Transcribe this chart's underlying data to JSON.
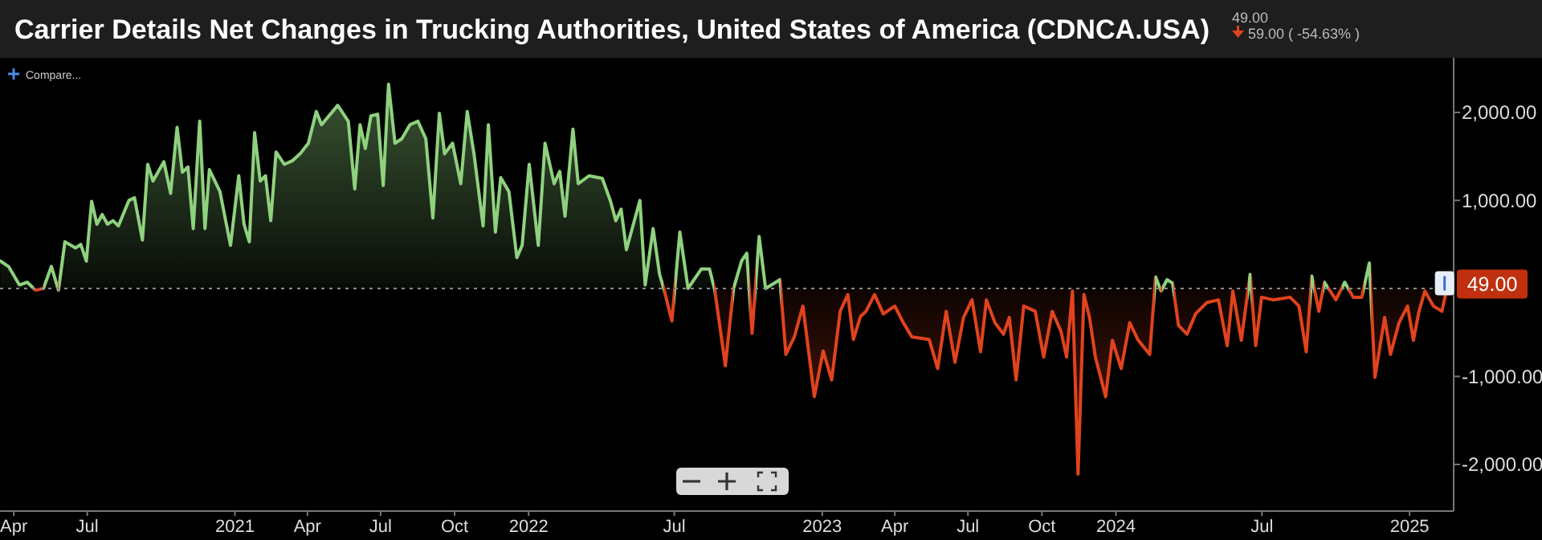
{
  "chart_data": {
    "type": "area",
    "title": "Carrier Details Net Changes in Trucking Authorities, United States of America (CDNCA.USA)",
    "annotations": [
      "49.00",
      "59.00 ( -54.63% )",
      "Compare...",
      {
        "text": "49.00",
        "x": 2025.13,
        "y": 49
      }
    ],
    "xlim": [
      2020.2,
      2025.15
    ],
    "xticks": [
      {
        "value": 2020.247,
        "label": "Apr"
      },
      {
        "value": 2020.497,
        "label": "Jul"
      },
      2021,
      {
        "value": 2021.247,
        "label": "Apr"
      },
      {
        "value": 2021.496,
        "label": "Jul"
      },
      {
        "value": 2021.748,
        "label": "Oct"
      },
      2022,
      {
        "value": 2022.496,
        "label": "Jul"
      },
      2023,
      {
        "value": 2023.247,
        "label": "Apr"
      },
      {
        "value": 2023.496,
        "label": "Jul"
      },
      {
        "value": 2023.748,
        "label": "Oct"
      },
      2024,
      {
        "value": 2024.497,
        "label": "Jul"
      },
      2025
    ],
    "ylim": [
      -2530,
      2620
    ],
    "yticks": [
      {
        "value": 2000,
        "label": "2,000.00"
      },
      {
        "value": 1000,
        "label": "1,000.00"
      },
      {
        "value": -1000,
        "label": "-1,000.00"
      },
      {
        "value": -2000,
        "label": "-2,000.00"
      }
    ],
    "ref_lines": [
      {
        "axis": "y",
        "value": 0,
        "color": "#8a8a8a",
        "line_style": "dotted"
      }
    ],
    "series": [
      {
        "colors": [
          "#8fd17e",
          "#8fd17e",
          "#8fd17e",
          "#8fd17e",
          "#e0431d",
          "#8fd17e",
          "#8fd17e",
          "#e0431d",
          "#8fd17e",
          "#8fd17e",
          "#8fd17e",
          "#8fd17e",
          "#8fd17e",
          "#8fd17e",
          "#8fd17e",
          "#8fd17e",
          "#8fd17e",
          "#8fd17e",
          "#8fd17e",
          "#8fd17e",
          "#8fd17e",
          "#8fd17e",
          "#8fd17e",
          "#8fd17e",
          "#8fd17e",
          "#8fd17e",
          "#8fd17e",
          "#8fd17e",
          "#8fd17e",
          "#8fd17e",
          "#8fd17e",
          "#8fd17e",
          "#8fd17e",
          "#8fd17e",
          "#8fd17e",
          "#8fd17e",
          "#8fd17e",
          "#8fd17e",
          "#8fd17e",
          "#8fd17e",
          "#8fd17e",
          "#8fd17e",
          "#8fd17e",
          "#8fd17e",
          "#8fd17e",
          "#8fd17e",
          "#8fd17e",
          "#8fd17e",
          "#8fd17e",
          "#8fd17e",
          "#8fd17e",
          "#8fd17e",
          "#8fd17e",
          "#8fd17e",
          "#8fd17e",
          "#8fd17e",
          "#8fd17e",
          "#8fd17e",
          "#8fd17e",
          "#8fd17e",
          "#8fd17e",
          "#8fd17e",
          "#8fd17e",
          "#8fd17e",
          "#8fd17e",
          "#8fd17e",
          "#8fd17e",
          "#8fd17e",
          "#8fd17e",
          "#8fd17e",
          "#8fd17e",
          "#8fd17e",
          "#8fd17e",
          "#8fd17e",
          "#8fd17e",
          "#8fd17e",
          "#8fd17e",
          "#8fd17e",
          "#8fd17e",
          "#8fd17e",
          "#8fd17e",
          "#8fd17e",
          "#8fd17e",
          "#8fd17e",
          "#8fd17e",
          "#8fd17e",
          "#8fd17e",
          "#8fd17e",
          "#8fd17e",
          "#8fd17e",
          "#8fd17e",
          "#8fd17e",
          "#8fd17e",
          "#8fd17e",
          "#e0431d",
          "#e0431d",
          "#8fd17e",
          "#8fd17e",
          "#8fd17e",
          "#8fd17e",
          "#e0431d",
          "#e0431d",
          "#8fd17e",
          "#8fd17e",
          "#8fd17e",
          "#e0431d",
          "#8fd17e",
          "#8fd17e",
          "#8fd17e",
          "#e0431d",
          "#e0431d",
          "#e0431d",
          "#e0431d",
          "#e0431d",
          "#e0431d",
          "#e0431d",
          "#e0431d",
          "#e0431d",
          "#e0431d",
          "#e0431d",
          "#e0431d",
          "#e0431d",
          "#e0431d",
          "#e0431d",
          "#e0431d",
          "#e0431d",
          "#e0431d",
          "#e0431d",
          "#e0431d",
          "#e0431d",
          "#e0431d",
          "#e0431d",
          "#e0431d",
          "#e0431d",
          "#e0431d",
          "#e0431d",
          "#e0431d",
          "#e0431d",
          "#e0431d",
          "#e0431d",
          "#e0431d",
          "#e0431d",
          "#e0431d",
          "#e0431d",
          "#e0431d",
          "#e0431d",
          "#e0431d",
          "#e0431d",
          "#e0431d",
          "#e0431d",
          "#e0431d",
          "#e0431d",
          "#e0431d",
          "#e0431d",
          "#8fd17e",
          "#e0431d",
          "#8fd17e",
          "#8fd17e",
          "#e0431d",
          "#e0431d",
          "#e0431d",
          "#e0431d",
          "#e0431d",
          "#e0431d",
          "#e0431d",
          "#e0431d",
          "#8fd17e",
          "#e0431d",
          "#e0431d",
          "#e0431d",
          "#e0431d",
          "#e0431d",
          "#e0431d",
          "#8fd17e",
          "#e0431d",
          "#8fd17e",
          "#e0431d",
          "#8fd17e",
          "#e0431d",
          "#e0431d",
          "#8fd17e",
          "#e0431d",
          "#e0431d",
          "#e0431d",
          "#e0431d",
          "#e0431d",
          "#e0431d",
          "#e0431d",
          "#e0431d",
          "#e0431d",
          "#e0431d",
          "#8fd17e"
        ],
        "x": [
          2020.202,
          2020.229,
          2020.266,
          2020.293,
          2020.321,
          2020.348,
          2020.375,
          2020.399,
          2020.421,
          2020.457,
          2020.475,
          2020.494,
          2020.512,
          2020.53,
          2020.548,
          2020.566,
          2020.585,
          2020.603,
          2020.639,
          2020.658,
          2020.685,
          2020.703,
          2020.721,
          2020.758,
          2020.781,
          2020.803,
          2020.821,
          2020.84,
          2020.858,
          2020.88,
          2020.898,
          2020.913,
          2020.949,
          2020.985,
          2021.013,
          2021.031,
          2021.049,
          2021.067,
          2021.086,
          2021.104,
          2021.122,
          2021.14,
          2021.168,
          2021.195,
          2021.222,
          2021.25,
          2021.277,
          2021.295,
          2021.35,
          2021.386,
          2021.408,
          2021.426,
          2021.444,
          2021.463,
          2021.486,
          2021.505,
          2021.523,
          2021.545,
          2021.568,
          2021.596,
          2021.623,
          2021.65,
          2021.674,
          2021.696,
          2021.714,
          2021.741,
          2021.769,
          2021.791,
          2021.814,
          2021.845,
          2021.863,
          2021.887,
          2021.905,
          2021.933,
          2021.96,
          2021.978,
          2022.002,
          2022.033,
          2022.056,
          2022.087,
          2022.106,
          2022.124,
          2022.151,
          2022.169,
          2022.206,
          2022.251,
          2022.279,
          2022.297,
          2022.315,
          2022.333,
          2022.379,
          2022.397,
          2022.424,
          2022.446,
          2022.461,
          2022.488,
          2022.515,
          2022.543,
          2022.588,
          2022.616,
          2022.634,
          2022.67,
          2022.698,
          2022.725,
          2022.743,
          2022.761,
          2022.785,
          2022.807,
          2022.856,
          2022.876,
          2022.905,
          2022.934,
          2022.973,
          2023.003,
          2023.032,
          2023.061,
          2023.087,
          2023.106,
          2023.13,
          2023.149,
          2023.178,
          2023.208,
          2023.247,
          2023.276,
          2023.305,
          2023.364,
          2023.393,
          2023.422,
          2023.452,
          2023.481,
          2023.51,
          2023.539,
          2023.559,
          2023.588,
          2023.617,
          2023.637,
          2023.66,
          2023.686,
          2023.725,
          2023.754,
          2023.783,
          2023.813,
          2023.832,
          2023.852,
          2023.871,
          2023.891,
          2023.91,
          2023.93,
          2023.965,
          2023.988,
          2024.018,
          2024.047,
          2024.076,
          2024.115,
          2024.135,
          2024.154,
          2024.174,
          2024.193,
          2024.213,
          2024.242,
          2024.271,
          2024.31,
          2024.349,
          2024.379,
          2024.398,
          2024.427,
          2024.457,
          2024.476,
          2024.496,
          2024.535,
          2024.593,
          2024.623,
          2024.648,
          2024.667,
          2024.691,
          2024.71,
          2024.749,
          2024.779,
          2024.808,
          2024.837,
          2024.863,
          2024.882,
          2024.915,
          2024.935,
          2024.964,
          2024.993,
          2025.013,
          2025.032,
          2025.052,
          2025.081,
          2025.11,
          2025.13
        ],
        "values": [
          310,
          250,
          40,
          70,
          -20,
          0,
          250,
          -20,
          530,
          460,
          500,
          310,
          990,
          730,
          840,
          730,
          770,
          710,
          1000,
          1030,
          550,
          1410,
          1220,
          1440,
          1080,
          1830,
          1320,
          1380,
          680,
          1900,
          680,
          1350,
          1100,
          490,
          1280,
          730,
          530,
          1770,
          1220,
          1280,
          770,
          1550,
          1410,
          1450,
          1530,
          1650,
          2010,
          1860,
          2080,
          1900,
          1130,
          1860,
          1590,
          1960,
          1980,
          1170,
          2320,
          1650,
          1700,
          1860,
          1900,
          1700,
          800,
          1990,
          1530,
          1650,
          1190,
          2010,
          1530,
          710,
          1860,
          640,
          1260,
          1100,
          350,
          490,
          1410,
          490,
          1650,
          1190,
          1330,
          820,
          1810,
          1190,
          1280,
          1250,
          990,
          770,
          900,
          440,
          1000,
          40,
          680,
          160,
          -10,
          -370,
          640,
          0,
          220,
          220,
          -20,
          -880,
          0,
          310,
          400,
          -510,
          590,
          0,
          100,
          -750,
          -550,
          -200,
          -1230,
          -710,
          -1040,
          -260,
          -70,
          -580,
          -320,
          -260,
          -70,
          -290,
          -200,
          -390,
          -550,
          -580,
          -910,
          -260,
          -840,
          -330,
          -130,
          -720,
          -130,
          -390,
          -520,
          -330,
          -1040,
          -200,
          -260,
          -780,
          -260,
          -490,
          -780,
          -30,
          -2110,
          -70,
          -330,
          -780,
          -1230,
          -590,
          -910,
          -390,
          -590,
          -750,
          130,
          -30,
          100,
          60,
          -420,
          -520,
          -290,
          -160,
          -130,
          -650,
          -30,
          -590,
          160,
          -650,
          -100,
          -130,
          -100,
          -200,
          -720,
          140,
          -260,
          70,
          -130,
          70,
          -100,
          -100,
          290,
          -1010,
          -330,
          -750,
          -390,
          -200,
          -590,
          -260,
          -30,
          -200,
          -260,
          49
        ]
      }
    ]
  }
}
